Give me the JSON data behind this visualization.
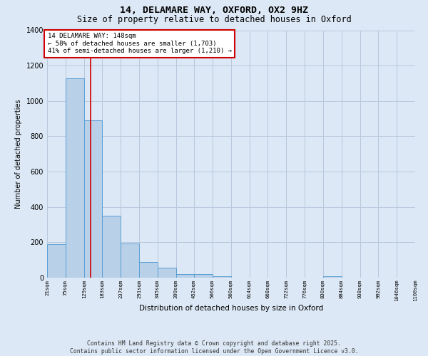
{
  "title": "14, DELAMARE WAY, OXFORD, OX2 9HZ",
  "subtitle": "Size of property relative to detached houses in Oxford",
  "xlabel": "Distribution of detached houses by size in Oxford",
  "ylabel": "Number of detached properties",
  "bar_color": "#b8d0e8",
  "bar_edge_color": "#5a9fd4",
  "background_color": "#dce8f5",
  "grid_color": "#b8c8dc",
  "bin_edges": [
    21,
    75,
    129,
    183,
    237,
    291,
    345,
    399,
    452,
    506,
    560,
    614,
    668,
    722,
    776,
    830,
    884,
    938,
    992,
    1046,
    1100
  ],
  "bar_heights": [
    190,
    1130,
    890,
    350,
    195,
    90,
    55,
    20,
    20,
    10,
    0,
    0,
    0,
    0,
    0,
    10,
    0,
    0,
    0,
    0
  ],
  "property_size": 148,
  "red_line_color": "#cc0000",
  "annotation_text": "14 DELAMARE WAY: 148sqm\n← 58% of detached houses are smaller (1,703)\n41% of semi-detached houses are larger (1,210) →",
  "annotation_box_color": "#ffffff",
  "annotation_border_color": "#cc0000",
  "ylim": [
    0,
    1400
  ],
  "yticks": [
    0,
    200,
    400,
    600,
    800,
    1000,
    1200,
    1400
  ],
  "tick_labels": [
    "21sqm",
    "75sqm",
    "129sqm",
    "183sqm",
    "237sqm",
    "291sqm",
    "345sqm",
    "399sqm",
    "452sqm",
    "506sqm",
    "560sqm",
    "614sqm",
    "668sqm",
    "722sqm",
    "776sqm",
    "830sqm",
    "884sqm",
    "938sqm",
    "992sqm",
    "1046sqm",
    "1100sqm"
  ],
  "footer_text": "Contains HM Land Registry data © Crown copyright and database right 2025.\nContains public sector information licensed under the Open Government Licence v3.0.",
  "title_fontsize": 9.5,
  "subtitle_fontsize": 8.5,
  "annotation_fontsize": 6.5,
  "footer_fontsize": 5.8,
  "ylabel_fontsize": 7,
  "xlabel_fontsize": 7.5,
  "ytick_fontsize": 7,
  "xtick_fontsize": 5.2
}
